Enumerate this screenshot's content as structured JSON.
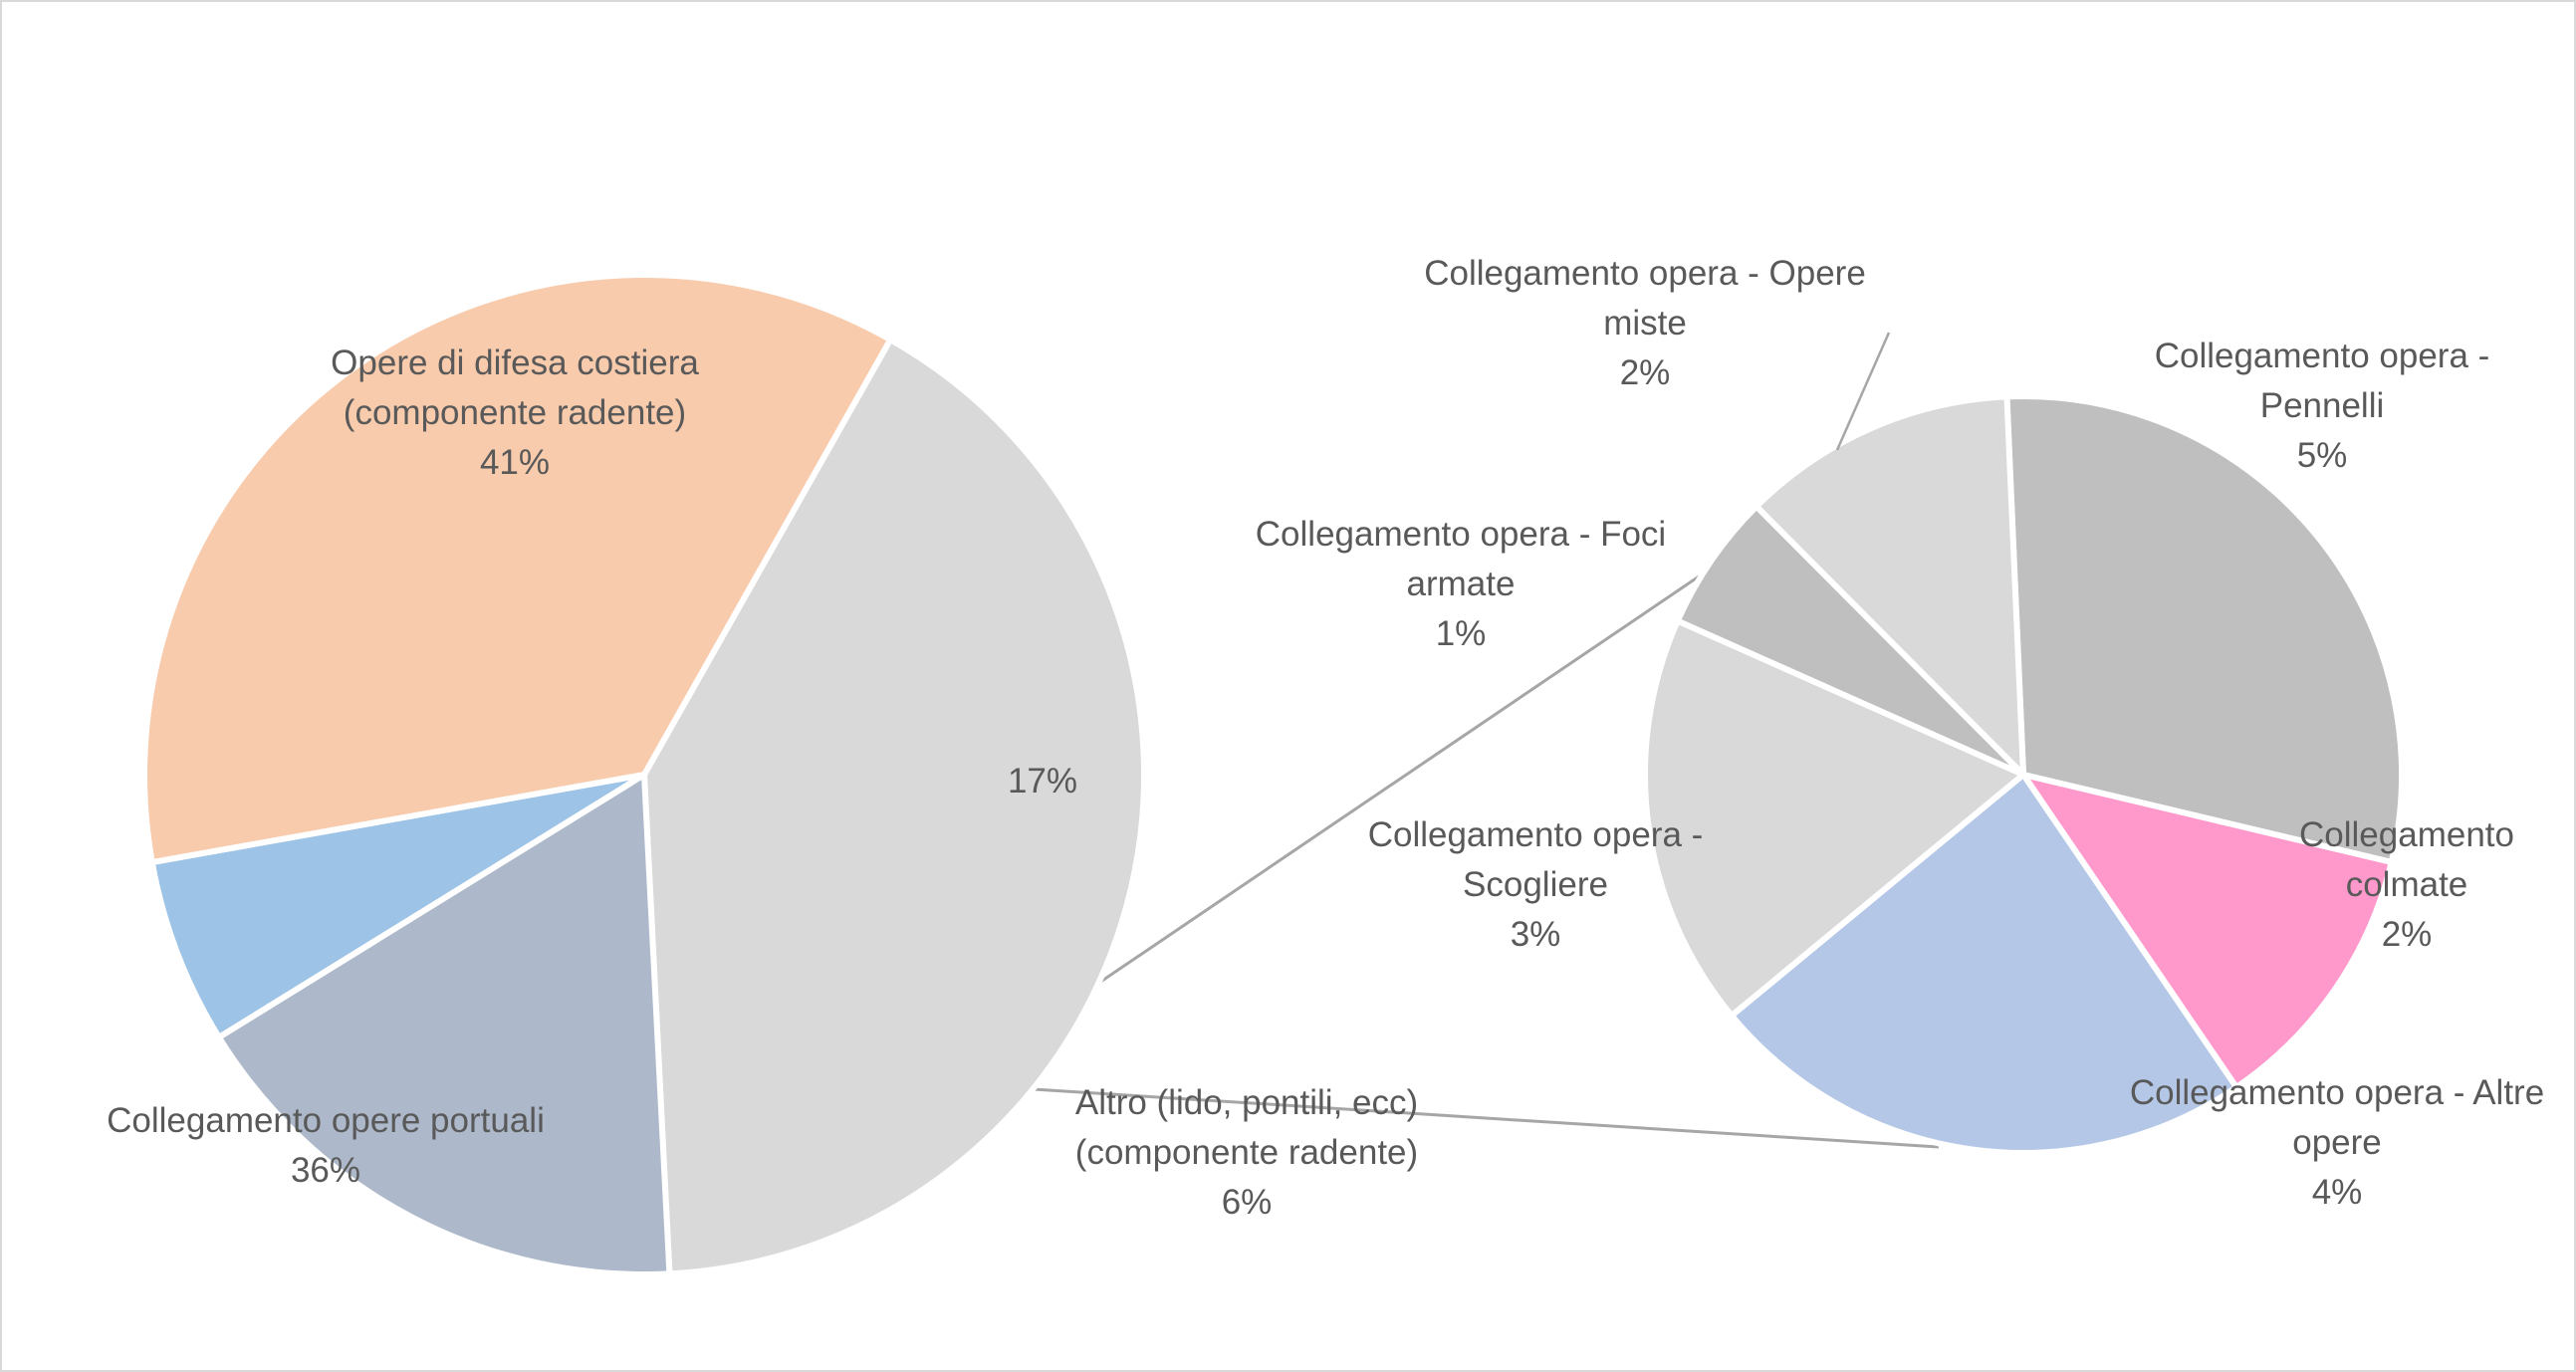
{
  "chart_data": {
    "type": "pie",
    "subtype": "pie-of-pie",
    "title": "",
    "main_pie": {
      "slices": [
        {
          "label_lines": [
            "Opere di difesa costiera",
            "(componente radente)"
          ],
          "value_label": "41%",
          "value": 41,
          "color": "#d9d9d9"
        },
        {
          "label_lines": [],
          "value_label": "17%",
          "value": 17,
          "color": "#adb9ca"
        },
        {
          "label_lines": [
            "Altro (lido, pontili, ecc)",
            "(componente radente)"
          ],
          "value_label": "6%",
          "value": 6,
          "color": "#9dc3e6"
        },
        {
          "label_lines": [
            "Collegamento opere portuali"
          ],
          "value_label": "36%",
          "value": 36,
          "color": "#f8cbad"
        }
      ]
    },
    "secondary_pie": {
      "slices": [
        {
          "label_lines": [
            "Collegamento opera -",
            "Pennelli"
          ],
          "value_label": "5%",
          "value": 5,
          "color": "#bfbfbf"
        },
        {
          "label_lines": [
            "Collegamento",
            "colmate"
          ],
          "value_label": "2%",
          "value": 2,
          "color": "#ff99cc"
        },
        {
          "label_lines": [
            "Collegamento opera - Altre",
            "opere"
          ],
          "value_label": "4%",
          "value": 4,
          "color": "#b4c7e7"
        },
        {
          "label_lines": [
            "Collegamento opera -",
            "Scogliere"
          ],
          "value_label": "3%",
          "value": 3,
          "color": "#d9d9d9"
        },
        {
          "label_lines": [
            "Collegamento opera - Foci",
            "armate"
          ],
          "value_label": "1%",
          "value": 1,
          "color": "#bfbfbf"
        },
        {
          "label_lines": [
            "Collegamento opera - Opere",
            "miste"
          ],
          "value_label": "2%",
          "value": 2,
          "color": "#d9d9d9"
        }
      ]
    },
    "legend": "none"
  }
}
